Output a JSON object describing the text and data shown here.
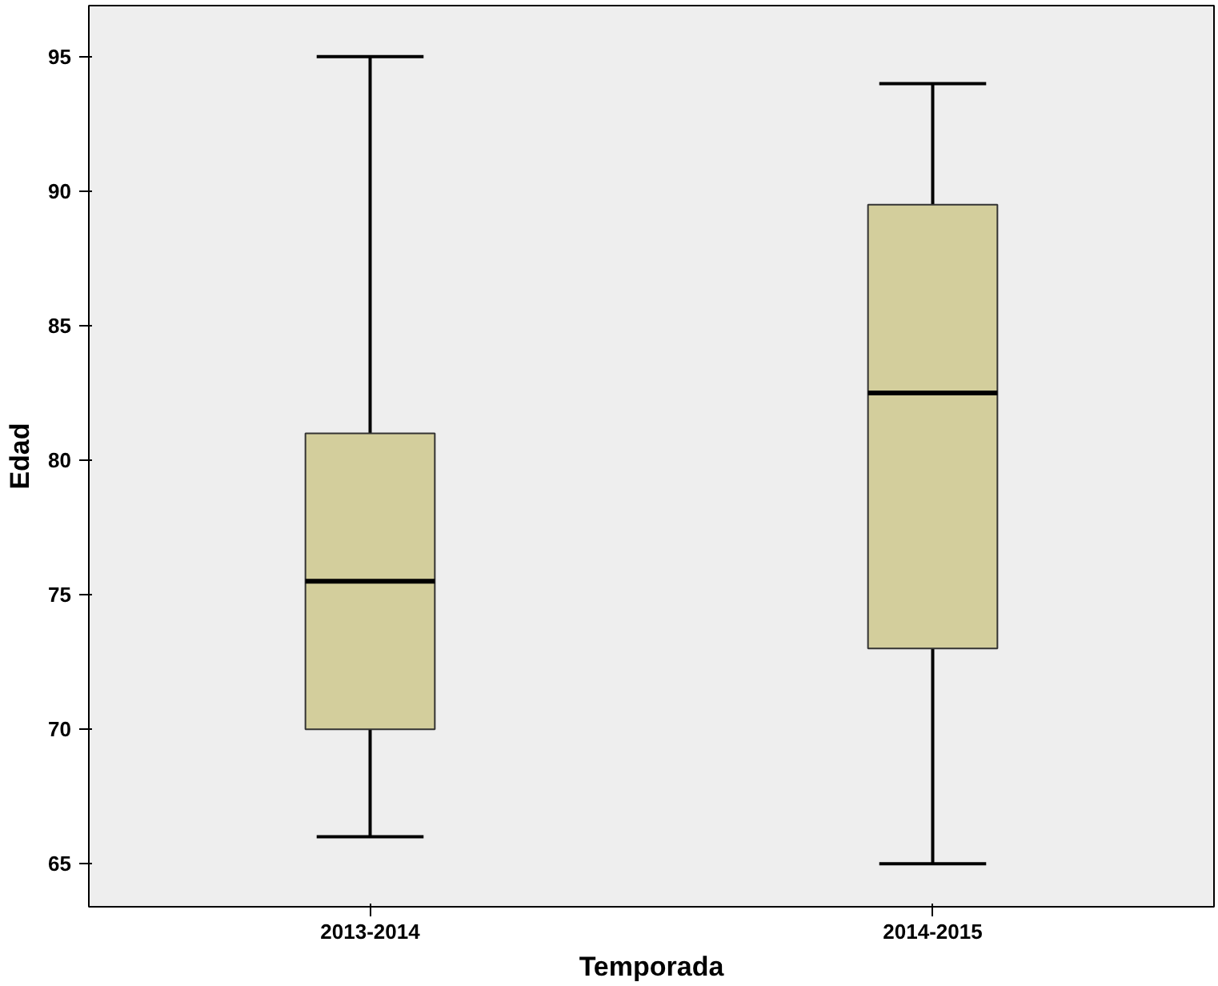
{
  "chart_data": {
    "type": "box",
    "xlabel": "Temporada",
    "ylabel": "Edad",
    "categories": [
      "2013-2014",
      "2014-2015"
    ],
    "series": [
      {
        "color": "#d3ce9c",
        "boxes": [
          {
            "low": 66,
            "q1": 70,
            "median": 75.5,
            "q3": 81,
            "high": 95
          },
          {
            "low": 65,
            "q1": 73,
            "median": 82.5,
            "q3": 89.5,
            "high": 94
          }
        ]
      }
    ],
    "ylim": [
      63.4,
      96.9
    ],
    "yticks": [
      65,
      70,
      75,
      80,
      85,
      90,
      95
    ],
    "grid": false
  }
}
